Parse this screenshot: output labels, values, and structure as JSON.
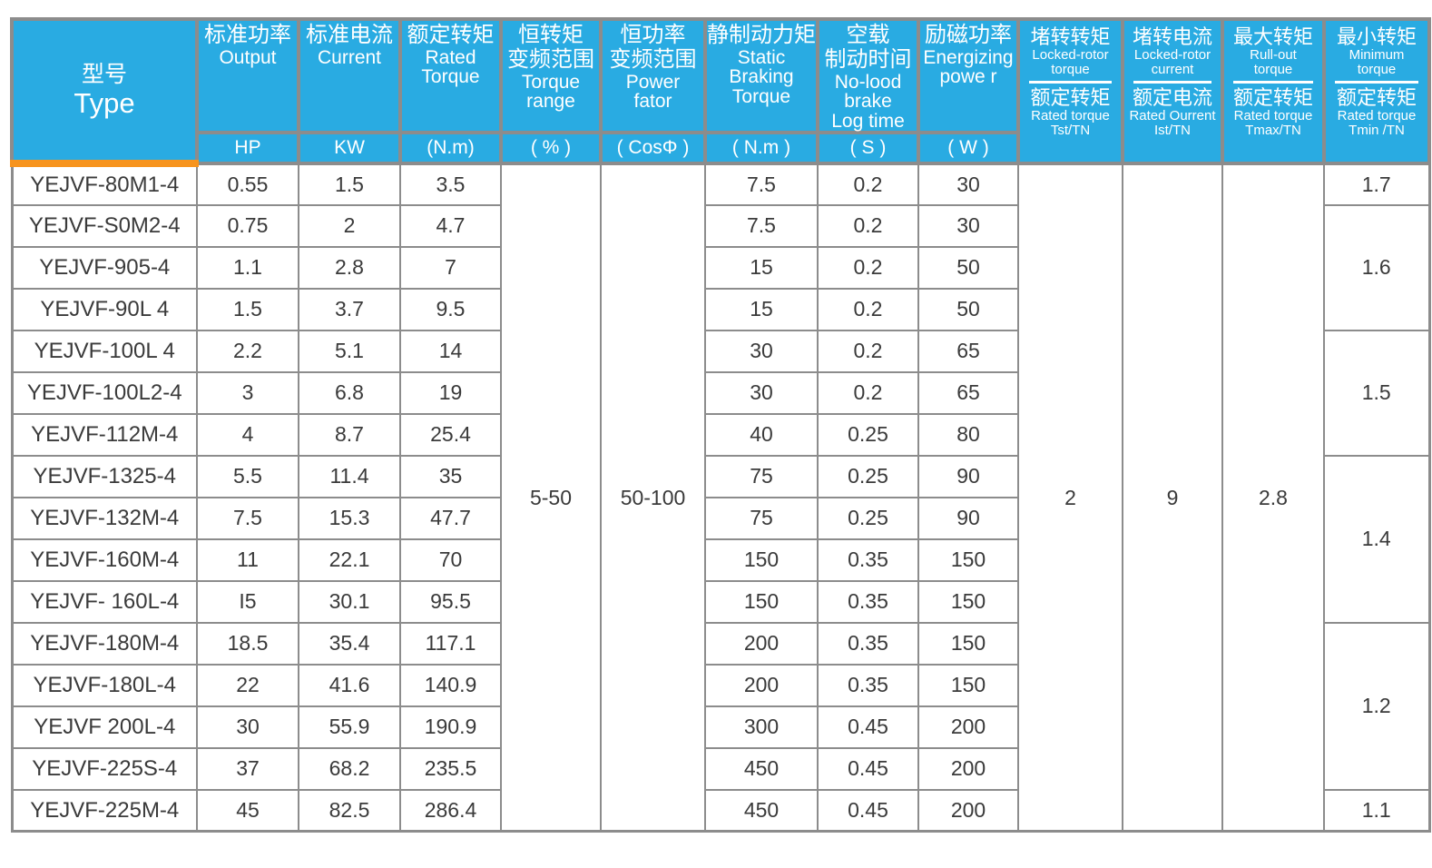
{
  "page": {
    "background": "#ffffff"
  },
  "colors": {
    "header_blue": "#29ABE2",
    "accent_orange": "#F7941E",
    "grid_gray": "#8C8C8C",
    "header_text": "#FFFFFF",
    "body_text": "#3A3A3A"
  },
  "table": {
    "header": {
      "type": {
        "zh": "型号",
        "en": "Type"
      },
      "output": {
        "zh": "标准功率",
        "en": "Output",
        "unit": "HP"
      },
      "current": {
        "zh": "标准电流",
        "en": "Current",
        "unit": "KW"
      },
      "rated_torque": {
        "zh": "额定转矩",
        "en1": "Rated",
        "en2": "Torque",
        "unit": "(N.m)"
      },
      "torque_range": {
        "zh1": "恒转矩",
        "zh2": "变频范围",
        "en1": "Torque",
        "en2": "range",
        "unit": "( % )"
      },
      "power_fator": {
        "zh1": "恒功率",
        "zh2": "变频范围",
        "en1": "Power",
        "en2": "fator",
        "unit": "( CosΦ )"
      },
      "static_braking": {
        "zh": "静制动力矩",
        "en1": "Static",
        "en2": "Braking",
        "en3": "Torque",
        "unit": "( N.m )"
      },
      "no_load": {
        "zh1": "空载",
        "zh2": "制动时间",
        "en1": "No-lood",
        "en2": "brake",
        "en3": "Log time",
        "unit": "( S )"
      },
      "energizing": {
        "zh": "励磁功率",
        "en1": "Energizing",
        "en2": "powe r",
        "unit": "( W )"
      },
      "locked_rotor_torque": {
        "zh_top": "堵转转矩",
        "en_top1": "Locked-rotor",
        "en_top2": "torque",
        "zh_bot": "额定转矩",
        "en_bot": "Rated torque",
        "ratio": "Tst/TN"
      },
      "locked_rotor_current": {
        "zh_top": "堵转电流",
        "en_top1": "Locked-rotor",
        "en_top2": "current",
        "zh_bot": "额定电流",
        "en_bot": "Rated Ourrent",
        "ratio": "Ist/TN"
      },
      "max_torque": {
        "zh_top": "最大转矩",
        "en_top1": "Rull-out",
        "en_top2": "torque",
        "zh_bot": "额定转矩",
        "en_bot": "Rated torque",
        "ratio": "Tmax/TN"
      },
      "min_torque": {
        "zh_top": "最小转矩",
        "en_top1": "Minimum",
        "en_top2": "torque",
        "zh_bot": "额定转矩",
        "en_bot": "Rated torque",
        "ratio": "Tmin /TN"
      }
    },
    "merged": {
      "torque_range": "5-50",
      "power_fator": "50-100",
      "tst_tn": "2",
      "ist_tn": "9",
      "tmax_tn": "2.8"
    },
    "min_torque_groups": [
      {
        "value": "1.7",
        "span": 1
      },
      {
        "value": "1.6",
        "span": 3
      },
      {
        "value": "1.5",
        "span": 3
      },
      {
        "value": "1.4",
        "span": 4
      },
      {
        "value": "1.2",
        "span": 4
      },
      {
        "value": "1.1",
        "span": 1
      }
    ],
    "rows": [
      {
        "type": "YEJVF-80M1-4",
        "hp": "0.55",
        "kw": "1.5",
        "nm": "3.5",
        "brake_nm": "7.5",
        "brake_s": "0.2",
        "power_w": "30"
      },
      {
        "type": "YEJVF-S0M2-4",
        "hp": "0.75",
        "kw": "2",
        "nm": "4.7",
        "brake_nm": "7.5",
        "brake_s": "0.2",
        "power_w": "30"
      },
      {
        "type": "YEJVF-905-4",
        "hp": "1.1",
        "kw": "2.8",
        "nm": "7",
        "brake_nm": "15",
        "brake_s": "0.2",
        "power_w": "50"
      },
      {
        "type": "YEJVF-90L 4",
        "hp": "1.5",
        "kw": "3.7",
        "nm": "9.5",
        "brake_nm": "15",
        "brake_s": "0.2",
        "power_w": "50"
      },
      {
        "type": "YEJVF-100L 4",
        "hp": "2.2",
        "kw": "5.1",
        "nm": "14",
        "brake_nm": "30",
        "brake_s": "0.2",
        "power_w": "65"
      },
      {
        "type": "YEJVF-100L2-4",
        "hp": "3",
        "kw": "6.8",
        "nm": "19",
        "brake_nm": "30",
        "brake_s": "0.2",
        "power_w": "65"
      },
      {
        "type": "YEJVF-112M-4",
        "hp": "4",
        "kw": "8.7",
        "nm": "25.4",
        "brake_nm": "40",
        "brake_s": "0.25",
        "power_w": "80"
      },
      {
        "type": "YEJVF-1325-4",
        "hp": "5.5",
        "kw": "11.4",
        "nm": "35",
        "brake_nm": "75",
        "brake_s": "0.25",
        "power_w": "90"
      },
      {
        "type": "YEJVF-132M-4",
        "hp": "7.5",
        "kw": "15.3",
        "nm": "47.7",
        "brake_nm": "75",
        "brake_s": "0.25",
        "power_w": "90"
      },
      {
        "type": "YEJVF-160M-4",
        "hp": "11",
        "kw": "22.1",
        "nm": "70",
        "brake_nm": "150",
        "brake_s": "0.35",
        "power_w": "150"
      },
      {
        "type": "YEJVF- 160L-4",
        "hp": "I5",
        "kw": "30.1",
        "nm": "95.5",
        "brake_nm": "150",
        "brake_s": "0.35",
        "power_w": "150"
      },
      {
        "type": "YEJVF-180M-4",
        "hp": "18.5",
        "kw": "35.4",
        "nm": "117.1",
        "brake_nm": "200",
        "brake_s": "0.35",
        "power_w": "150"
      },
      {
        "type": "YEJVF-180L-4",
        "hp": "22",
        "kw": "41.6",
        "nm": "140.9",
        "brake_nm": "200",
        "brake_s": "0.35",
        "power_w": "150"
      },
      {
        "type": "YEJVF 200L-4",
        "hp": "30",
        "kw": "55.9",
        "nm": "190.9",
        "brake_nm": "300",
        "brake_s": "0.45",
        "power_w": "200"
      },
      {
        "type": "YEJVF-225S-4",
        "hp": "37",
        "kw": "68.2",
        "nm": "235.5",
        "brake_nm": "450",
        "brake_s": "0.45",
        "power_w": "200"
      },
      {
        "type": "YEJVF-225M-4",
        "hp": "45",
        "kw": "82.5",
        "nm": "286.4",
        "brake_nm": "450",
        "brake_s": "0.45",
        "power_w": "200"
      }
    ]
  }
}
